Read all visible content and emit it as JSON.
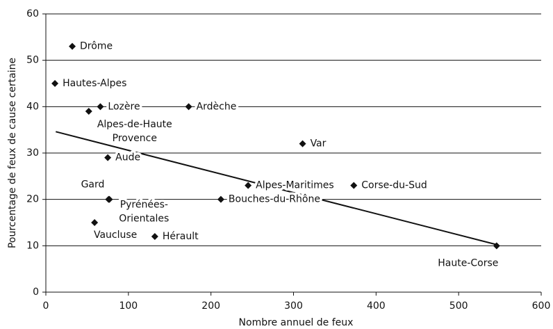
{
  "chart_data": {
    "type": "scatter",
    "x_label": "Nombre annuel de feux",
    "y_label": "Pourcentage de feux de cause certaine",
    "xlim": [
      0,
      600
    ],
    "xticks": [
      0,
      100,
      200,
      300,
      400,
      500,
      600
    ],
    "ylim": [
      0,
      60
    ],
    "yticks": [
      0,
      10,
      20,
      30,
      40,
      50,
      60
    ],
    "grid": true,
    "color": "#111111",
    "points": [
      {
        "label": [
          "Drôme"
        ],
        "x": 32,
        "y": 53
      },
      {
        "label": [
          "Hautes-Alpes"
        ],
        "x": 11,
        "y": 45
      },
      {
        "label": [
          "Lozère"
        ],
        "x": 66,
        "y": 40
      },
      {
        "label": [
          "Ardèche"
        ],
        "x": 173,
        "y": 40
      },
      {
        "label": [
          "Alpes-de-Haute",
          "Provence"
        ],
        "x": 52,
        "y": 39
      },
      {
        "label": [
          "Var"
        ],
        "x": 311,
        "y": 32
      },
      {
        "label": [
          "Aude"
        ],
        "x": 75,
        "y": 29
      },
      {
        "label": [
          "Alpes-Maritimes"
        ],
        "x": 245,
        "y": 23
      },
      {
        "label": [
          "Corse-du-Sud"
        ],
        "x": 373,
        "y": 23
      },
      {
        "label": [
          "Gard"
        ],
        "x": 77,
        "y": 20
      },
      {
        "label": [
          "Pyrénées-",
          "Orientales"
        ],
        "x": 76,
        "y": 20
      },
      {
        "label": [
          "Bouches-du-Rhône"
        ],
        "x": 212,
        "y": 20
      },
      {
        "label": [
          "Vaucluse"
        ],
        "x": 59,
        "y": 15
      },
      {
        "label": [
          "Hérault"
        ],
        "x": 132,
        "y": 12
      },
      {
        "label": [
          "Haute-Corse"
        ],
        "x": 546,
        "y": 10
      }
    ],
    "trendline": {
      "x": [
        12,
        547
      ],
      "y": [
        34.6,
        10.2
      ]
    }
  }
}
